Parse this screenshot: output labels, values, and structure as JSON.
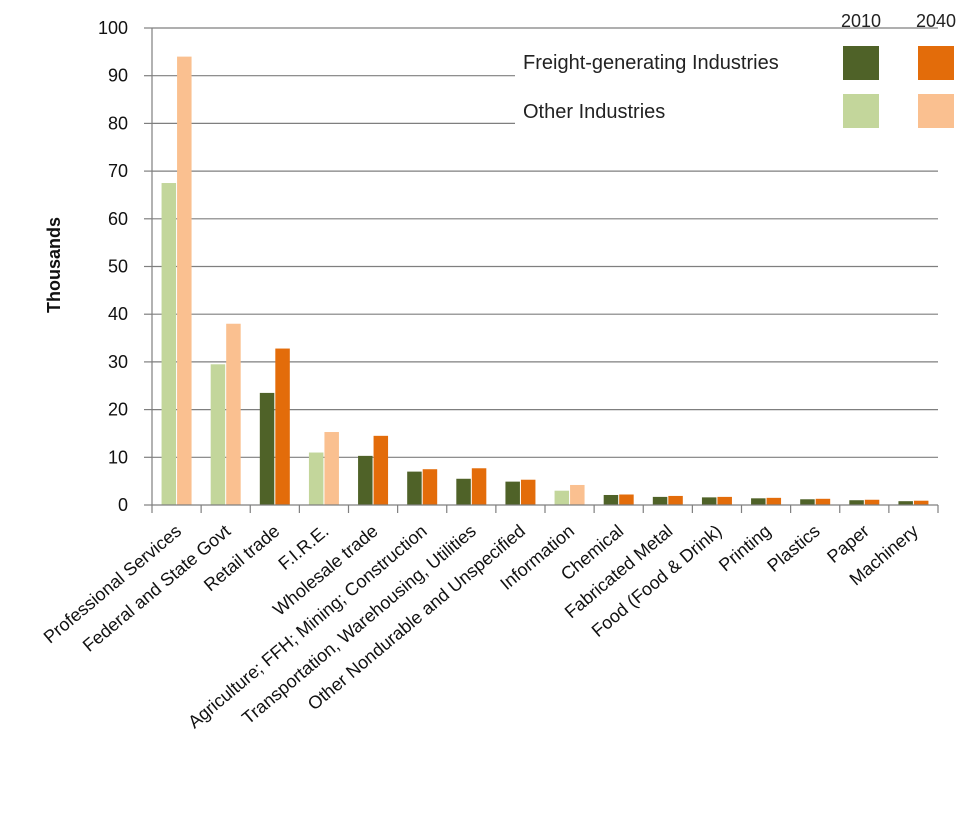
{
  "chart_data": {
    "type": "bar",
    "title": "",
    "xlabel": "",
    "ylabel": "Thousands",
    "ylim": [
      0,
      100
    ],
    "yticks": [
      0,
      10,
      20,
      30,
      40,
      50,
      60,
      70,
      80,
      90,
      100
    ],
    "grid": true,
    "legend": {
      "placement": "top-right",
      "years": [
        "2010",
        "2040"
      ],
      "groups": [
        {
          "label": "Freight-generating Industries",
          "colors": {
            "2010": "#4f6228",
            "2040": "#e36c0a"
          }
        },
        {
          "label": "Other Industries",
          "colors": {
            "2010": "#c3d69b",
            "2040": "#fac090"
          }
        }
      ]
    },
    "categories": [
      "Professional Services",
      "Federal and State Govt",
      "Retail trade",
      "F.I.R.E.",
      "Wholesale trade",
      "Agriculture; FFH; Mining; Construction",
      "Transportation, Warehousing, Utilities",
      "Other Nondurable and Unspecified",
      "Information",
      "Chemical",
      "Fabricated Metal",
      "Food (Food & Drink)",
      "Printing",
      "Plastics",
      "Paper",
      "Machinery"
    ],
    "category_group": [
      "Other Industries",
      "Other Industries",
      "Freight-generating Industries",
      "Other Industries",
      "Freight-generating Industries",
      "Freight-generating Industries",
      "Freight-generating Industries",
      "Freight-generating Industries",
      "Other Industries",
      "Freight-generating Industries",
      "Freight-generating Industries",
      "Freight-generating Industries",
      "Freight-generating Industries",
      "Freight-generating Industries",
      "Freight-generating Industries",
      "Freight-generating Industries"
    ],
    "series": [
      {
        "name": "2010",
        "values": [
          67.5,
          29.5,
          23.5,
          11,
          10.3,
          7,
          5.5,
          4.9,
          3,
          2.1,
          1.7,
          1.6,
          1.4,
          1.2,
          1,
          0.8
        ]
      },
      {
        "name": "2040",
        "values": [
          94,
          38,
          32.8,
          15.3,
          14.5,
          7.5,
          7.7,
          5.3,
          4.2,
          2.2,
          1.9,
          1.7,
          1.5,
          1.3,
          1.1,
          0.9
        ]
      }
    ]
  }
}
